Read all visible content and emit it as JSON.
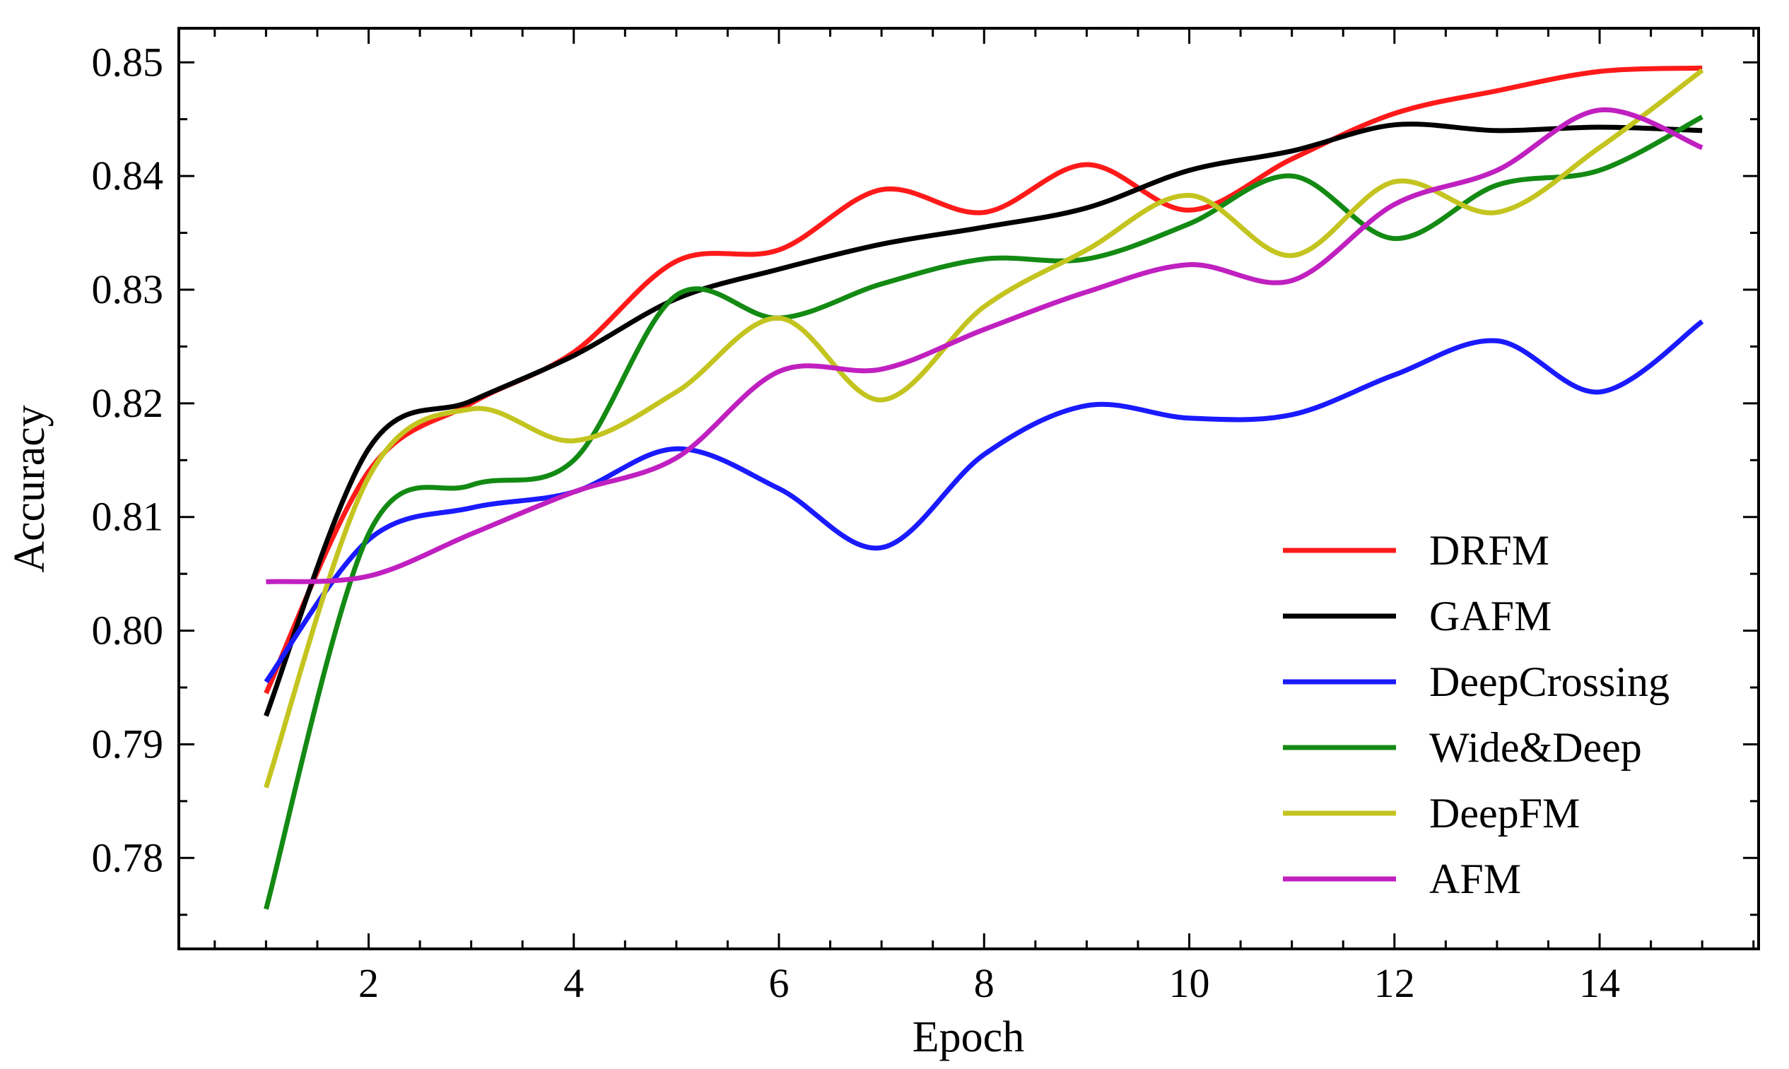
{
  "chart_data": {
    "type": "line",
    "title": "",
    "xlabel": "Epoch",
    "ylabel": "Accuracy",
    "xlim": [
      0.15,
      15.55
    ],
    "ylim": [
      0.772,
      0.853
    ],
    "xticks": [
      2,
      4,
      6,
      8,
      10,
      12,
      14
    ],
    "xtick_labels": [
      "2",
      "4",
      "6",
      "8",
      "10",
      "12",
      "14"
    ],
    "xminor_step": 0.5,
    "yticks": [
      0.78,
      0.79,
      0.8,
      0.81,
      0.82,
      0.83,
      0.84,
      0.85
    ],
    "ytick_labels": [
      "0.78",
      "0.79",
      "0.80",
      "0.81",
      "0.82",
      "0.83",
      "0.84",
      "0.85"
    ],
    "grid": false,
    "legend_position": "lower-right",
    "x": [
      1,
      2,
      3,
      4,
      5,
      6,
      7,
      8,
      9,
      10,
      11,
      12,
      13,
      14,
      15
    ],
    "series": [
      {
        "name": "DRFM",
        "color": "#ff1a1a",
        "values": [
          0.7945,
          0.814,
          0.82,
          0.8245,
          0.8325,
          0.8335,
          0.8388,
          0.8368,
          0.841,
          0.837,
          0.8415,
          0.8455,
          0.8475,
          0.8492,
          0.8495
        ]
      },
      {
        "name": "GAFM",
        "color": "#000000",
        "values": [
          0.7925,
          0.816,
          0.8202,
          0.8242,
          0.8292,
          0.8318,
          0.834,
          0.8355,
          0.8372,
          0.8405,
          0.8422,
          0.8445,
          0.844,
          0.8443,
          0.844
        ]
      },
      {
        "name": "DeepCrossing",
        "color": "#1a1aff",
        "values": [
          0.7955,
          0.808,
          0.8108,
          0.8122,
          0.816,
          0.8125,
          0.8073,
          0.8155,
          0.8198,
          0.8187,
          0.819,
          0.8225,
          0.8255,
          0.821,
          0.8272
        ]
      },
      {
        "name": "Wide&Deep",
        "color": "#138a13",
        "values": [
          0.7755,
          0.8085,
          0.8128,
          0.815,
          0.8295,
          0.8275,
          0.8305,
          0.8327,
          0.8327,
          0.8358,
          0.84,
          0.8345,
          0.8392,
          0.8405,
          0.8452
        ]
      },
      {
        "name": "DeepFM",
        "color": "#c4c420",
        "values": [
          0.7862,
          0.8135,
          0.8195,
          0.8167,
          0.821,
          0.8275,
          0.8203,
          0.8285,
          0.8335,
          0.8383,
          0.833,
          0.8395,
          0.8368,
          0.8425,
          0.8493
        ]
      },
      {
        "name": "AFM",
        "color": "#c020c0",
        "values": [
          0.8043,
          0.8048,
          0.8085,
          0.8122,
          0.8152,
          0.8228,
          0.823,
          0.8265,
          0.8298,
          0.8322,
          0.8308,
          0.8375,
          0.8405,
          0.8458,
          0.8425
        ]
      }
    ]
  }
}
